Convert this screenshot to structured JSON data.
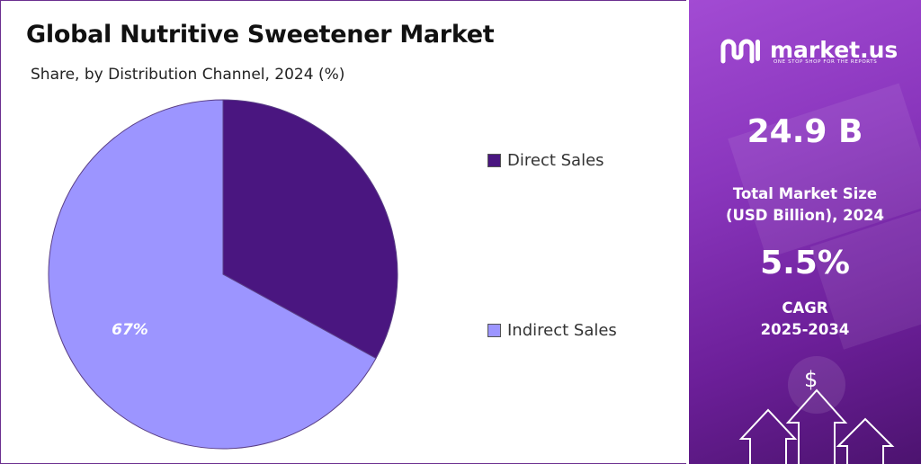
{
  "header": {
    "title": "Global Nutritive Sweetener Market",
    "subtitle": "Share, by Distribution Channel, 2024 (%)"
  },
  "chart_data": {
    "type": "pie",
    "title": "Global Nutritive Sweetener Market",
    "subtitle": "Share, by Distribution Channel, 2024 (%)",
    "categories": [
      "Direct Sales",
      "Indirect Sales"
    ],
    "values": [
      33,
      67
    ],
    "unit": "%",
    "data_labels": [
      "",
      "67%"
    ],
    "colors": [
      "#4a1680",
      "#9c95ff"
    ],
    "legend_position": "right"
  },
  "legend": {
    "items": [
      {
        "label": "Direct Sales",
        "color": "#4a1680"
      },
      {
        "label": "Indirect Sales",
        "color": "#9c95ff"
      }
    ]
  },
  "sidebar": {
    "logo_text": "market.us",
    "logo_tagline": "ONE STOP SHOP FOR THE REPORTS",
    "market_size": "24.9 B",
    "market_size_label_line1": "Total Market Size",
    "market_size_label_line2": "(USD Billion), 2024",
    "cagr_value": "5.5%",
    "cagr_label_line1": "CAGR",
    "cagr_label_line2": "2025-2034",
    "dollar_symbol": "$",
    "icons": [
      "market-us-logo-icon",
      "dollar-icon",
      "up-arrow-icon"
    ]
  },
  "colors": {
    "accent": "#8a36bd",
    "panel_dark": "#4c136f",
    "border": "#6b2f8f"
  }
}
